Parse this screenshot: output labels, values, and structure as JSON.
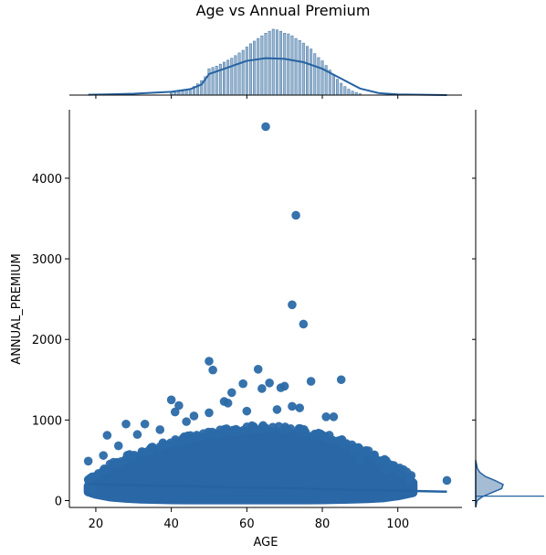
{
  "chart_data": {
    "type": "scatter",
    "title": "Age vs Annual Premium",
    "xlabel": "AGE",
    "ylabel": "ANNUAL_PREMIUM",
    "xlim": [
      13,
      117
    ],
    "ylim": [
      -85,
      4850
    ],
    "xticks": [
      20,
      40,
      60,
      80,
      100
    ],
    "xtick_labels": [
      "20",
      "40",
      "60",
      "80",
      "100"
    ],
    "yticks": [
      0,
      1000,
      2000,
      3000,
      4000
    ],
    "ytick_labels": [
      "0",
      "1000",
      "2000",
      "3000",
      "4000"
    ],
    "grid": false,
    "legend": "none",
    "colors": {
      "points": "#2b6aa8",
      "dense_fill": "#2a67a7",
      "marginal_bar": "#4c7caa",
      "kde_line": "#2563a3",
      "spine": "#000000"
    },
    "dense_cloud": {
      "age": [
        18,
        20,
        24,
        28,
        32,
        36,
        40,
        44,
        48,
        52,
        56,
        60,
        64,
        68,
        72,
        76,
        80,
        84,
        88,
        92,
        96,
        100,
        104
      ],
      "upper": [
        180,
        300,
        380,
        480,
        560,
        620,
        680,
        720,
        760,
        800,
        830,
        850,
        860,
        850,
        830,
        800,
        760,
        700,
        640,
        560,
        460,
        360,
        220
      ],
      "lower": [
        110,
        80,
        45,
        30,
        20,
        15,
        12,
        10,
        10,
        10,
        10,
        10,
        10,
        10,
        10,
        10,
        12,
        15,
        20,
        25,
        35,
        60,
        100
      ]
    },
    "points": [
      {
        "x": 65,
        "y": 4640
      },
      {
        "x": 73,
        "y": 3540
      },
      {
        "x": 72,
        "y": 2430
      },
      {
        "x": 75,
        "y": 2190
      },
      {
        "x": 50,
        "y": 1730
      },
      {
        "x": 51,
        "y": 1620
      },
      {
        "x": 63,
        "y": 1630
      },
      {
        "x": 85,
        "y": 1500
      },
      {
        "x": 77,
        "y": 1480
      },
      {
        "x": 59,
        "y": 1450
      },
      {
        "x": 66,
        "y": 1460
      },
      {
        "x": 70,
        "y": 1420
      },
      {
        "x": 69,
        "y": 1400
      },
      {
        "x": 64,
        "y": 1390
      },
      {
        "x": 56,
        "y": 1340
      },
      {
        "x": 40,
        "y": 1250
      },
      {
        "x": 54,
        "y": 1230
      },
      {
        "x": 55,
        "y": 1210
      },
      {
        "x": 42,
        "y": 1180
      },
      {
        "x": 72,
        "y": 1170
      },
      {
        "x": 74,
        "y": 1150
      },
      {
        "x": 41,
        "y": 1100
      },
      {
        "x": 50,
        "y": 1090
      },
      {
        "x": 81,
        "y": 1040
      },
      {
        "x": 83,
        "y": 1040
      },
      {
        "x": 46,
        "y": 1050
      },
      {
        "x": 68,
        "y": 1130
      },
      {
        "x": 60,
        "y": 1110
      },
      {
        "x": 33,
        "y": 950
      },
      {
        "x": 28,
        "y": 950
      },
      {
        "x": 44,
        "y": 980
      },
      {
        "x": 37,
        "y": 880
      },
      {
        "x": 23,
        "y": 810
      },
      {
        "x": 90,
        "y": 510
      },
      {
        "x": 95,
        "y": 490
      },
      {
        "x": 99,
        "y": 420
      },
      {
        "x": 101,
        "y": 330
      },
      {
        "x": 103,
        "y": 250
      },
      {
        "x": 18,
        "y": 490
      },
      {
        "x": 18,
        "y": 260
      },
      {
        "x": 19,
        "y": 150
      },
      {
        "x": 113,
        "y": 250
      },
      {
        "x": 22,
        "y": 560
      },
      {
        "x": 26,
        "y": 680
      },
      {
        "x": 31,
        "y": 820
      },
      {
        "x": 88,
        "y": 620
      },
      {
        "x": 97,
        "y": 380
      },
      {
        "x": 86,
        "y": 700
      }
    ],
    "regression": {
      "x": [
        18,
        113
      ],
      "y": [
        205,
        110
      ]
    },
    "top_marginal": {
      "bins_age": [
        40,
        41,
        42,
        43,
        44,
        45,
        46,
        47,
        48,
        49,
        50,
        51,
        52,
        53,
        54,
        55,
        56,
        57,
        58,
        59,
        60,
        61,
        62,
        63,
        64,
        65,
        66,
        67,
        68,
        69,
        70,
        71,
        72,
        73,
        74,
        75,
        76,
        77,
        78,
        79,
        80,
        81,
        82,
        83,
        84,
        85,
        86,
        87,
        88,
        89,
        90
      ],
      "heights": [
        0.03,
        0.04,
        0.05,
        0.06,
        0.08,
        0.1,
        0.13,
        0.17,
        0.22,
        0.28,
        0.4,
        0.42,
        0.44,
        0.47,
        0.5,
        0.53,
        0.56,
        0.6,
        0.64,
        0.68,
        0.73,
        0.78,
        0.82,
        0.86,
        0.9,
        0.94,
        0.97,
        1.0,
        0.99,
        0.97,
        0.94,
        0.93,
        0.9,
        0.86,
        0.83,
        0.79,
        0.74,
        0.7,
        0.63,
        0.57,
        0.52,
        0.45,
        0.38,
        0.3,
        0.24,
        0.18,
        0.13,
        0.09,
        0.06,
        0.04,
        0.02
      ],
      "kde_age": [
        18,
        30,
        40,
        45,
        48,
        50,
        55,
        60,
        65,
        70,
        75,
        80,
        85,
        90,
        95,
        100,
        113
      ],
      "kde_density": [
        0.005,
        0.02,
        0.05,
        0.09,
        0.16,
        0.32,
        0.42,
        0.52,
        0.56,
        0.55,
        0.5,
        0.4,
        0.25,
        0.1,
        0.03,
        0.01,
        0.0
      ]
    },
    "right_marginal": {
      "kde_premium": [
        -80,
        0,
        50,
        100,
        150,
        200,
        250,
        300,
        350,
        400,
        500
      ],
      "kde_density": [
        0.0,
        0.05,
        0.25,
        0.6,
        0.95,
        1.0,
        0.7,
        0.35,
        0.15,
        0.06,
        0.0
      ],
      "spike_premium": 55
    }
  }
}
